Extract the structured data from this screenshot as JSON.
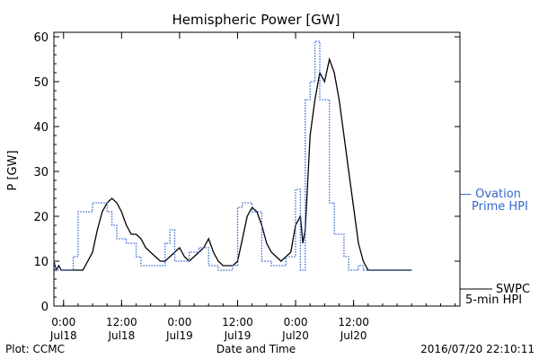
{
  "chart_data": {
    "type": "line",
    "title": "Hemispheric Power [GW]",
    "ylabel": "P [GW]",
    "xlabel": "Date and Time",
    "ylim": [
      0,
      61
    ],
    "xlim": [
      "2016-07-17T22:00",
      "2016-07-21T10:00"
    ],
    "y_ticks": [
      0,
      10,
      20,
      30,
      40,
      50,
      60
    ],
    "x_ticks": [
      {
        "at": "2016-07-18T00:00",
        "line1": "0:00",
        "line2": "Jul18"
      },
      {
        "at": "2016-07-18T12:00",
        "line1": "12:00",
        "line2": "Jul18"
      },
      {
        "at": "2016-07-19T00:00",
        "line1": "0:00",
        "line2": "Jul19"
      },
      {
        "at": "2016-07-19T12:00",
        "line1": "12:00",
        "line2": "Jul19"
      },
      {
        "at": "2016-07-20T00:00",
        "line1": "0:00",
        "line2": "Jul20"
      },
      {
        "at": "2016-07-20T12:00",
        "line1": "12:00",
        "line2": "Jul20"
      }
    ],
    "series": [
      {
        "name": "SWPC 5-min HPI",
        "label_lines": [
          "SWPC",
          "5-min HPI"
        ],
        "color": "#000000",
        "style": "solid",
        "points": [
          [
            "2016-07-17T22:00",
            10
          ],
          [
            "2016-07-17T22:30",
            8
          ],
          [
            "2016-07-17T23:00",
            9
          ],
          [
            "2016-07-17T23:30",
            8
          ],
          [
            "2016-07-18T00:00",
            8
          ],
          [
            "2016-07-18T01:00",
            8
          ],
          [
            "2016-07-18T02:00",
            8
          ],
          [
            "2016-07-18T03:00",
            8
          ],
          [
            "2016-07-18T04:00",
            8
          ],
          [
            "2016-07-18T05:00",
            10
          ],
          [
            "2016-07-18T06:00",
            12
          ],
          [
            "2016-07-18T07:00",
            17
          ],
          [
            "2016-07-18T08:00",
            21
          ],
          [
            "2016-07-18T09:00",
            23
          ],
          [
            "2016-07-18T10:00",
            24
          ],
          [
            "2016-07-18T11:00",
            23
          ],
          [
            "2016-07-18T12:00",
            21
          ],
          [
            "2016-07-18T13:00",
            18
          ],
          [
            "2016-07-18T14:00",
            16
          ],
          [
            "2016-07-18T15:00",
            16
          ],
          [
            "2016-07-18T16:00",
            15
          ],
          [
            "2016-07-18T17:00",
            13
          ],
          [
            "2016-07-18T18:00",
            12
          ],
          [
            "2016-07-18T19:00",
            11
          ],
          [
            "2016-07-18T20:00",
            10
          ],
          [
            "2016-07-18T21:00",
            10
          ],
          [
            "2016-07-18T22:00",
            11
          ],
          [
            "2016-07-18T23:00",
            12
          ],
          [
            "2016-07-19T00:00",
            13
          ],
          [
            "2016-07-19T01:00",
            11
          ],
          [
            "2016-07-19T02:00",
            10
          ],
          [
            "2016-07-19T03:00",
            11
          ],
          [
            "2016-07-19T04:00",
            12
          ],
          [
            "2016-07-19T05:00",
            13
          ],
          [
            "2016-07-19T06:00",
            15
          ],
          [
            "2016-07-19T07:00",
            12
          ],
          [
            "2016-07-19T08:00",
            10
          ],
          [
            "2016-07-19T09:00",
            9
          ],
          [
            "2016-07-19T10:00",
            9
          ],
          [
            "2016-07-19T11:00",
            9
          ],
          [
            "2016-07-19T12:00",
            10
          ],
          [
            "2016-07-19T13:00",
            15
          ],
          [
            "2016-07-19T14:00",
            20
          ],
          [
            "2016-07-19T15:00",
            22
          ],
          [
            "2016-07-19T16:00",
            21
          ],
          [
            "2016-07-19T17:00",
            18
          ],
          [
            "2016-07-19T18:00",
            14
          ],
          [
            "2016-07-19T19:00",
            12
          ],
          [
            "2016-07-19T20:00",
            11
          ],
          [
            "2016-07-19T21:00",
            10
          ],
          [
            "2016-07-19T22:00",
            11
          ],
          [
            "2016-07-19T23:00",
            12
          ],
          [
            "2016-07-20T00:00",
            18
          ],
          [
            "2016-07-20T01:00",
            20
          ],
          [
            "2016-07-20T01:30",
            14
          ],
          [
            "2016-07-20T02:00",
            17
          ],
          [
            "2016-07-20T03:00",
            38
          ],
          [
            "2016-07-20T04:00",
            46
          ],
          [
            "2016-07-20T05:00",
            52
          ],
          [
            "2016-07-20T06:00",
            50
          ],
          [
            "2016-07-20T07:00",
            55
          ],
          [
            "2016-07-20T08:00",
            52
          ],
          [
            "2016-07-20T09:00",
            46
          ],
          [
            "2016-07-20T10:00",
            38
          ],
          [
            "2016-07-20T11:00",
            30
          ],
          [
            "2016-07-20T12:00",
            22
          ],
          [
            "2016-07-20T13:00",
            14
          ],
          [
            "2016-07-20T14:00",
            10
          ],
          [
            "2016-07-20T15:00",
            8
          ],
          [
            "2016-07-20T16:00",
            8
          ],
          [
            "2016-07-20T18:00",
            8
          ],
          [
            "2016-07-20T22:00",
            8
          ],
          [
            "2016-07-21T00:00",
            8
          ]
        ]
      },
      {
        "name": "Ovation Prime HPI",
        "label_lines": [
          "— Ovation",
          "Prime HPI"
        ],
        "color": "#3366cc",
        "style": "dotted",
        "points": [
          [
            "2016-07-17T22:00",
            10
          ],
          [
            "2016-07-17T22:30",
            8
          ],
          [
            "2016-07-18T02:00",
            8
          ],
          [
            "2016-07-18T02:00",
            11
          ],
          [
            "2016-07-18T03:00",
            11
          ],
          [
            "2016-07-18T03:00",
            21
          ],
          [
            "2016-07-18T06:00",
            21
          ],
          [
            "2016-07-18T06:00",
            23
          ],
          [
            "2016-07-18T09:00",
            23
          ],
          [
            "2016-07-18T09:00",
            21
          ],
          [
            "2016-07-18T10:00",
            21
          ],
          [
            "2016-07-18T10:00",
            18
          ],
          [
            "2016-07-18T11:00",
            18
          ],
          [
            "2016-07-18T11:00",
            15
          ],
          [
            "2016-07-18T13:00",
            15
          ],
          [
            "2016-07-18T13:00",
            14
          ],
          [
            "2016-07-18T15:00",
            14
          ],
          [
            "2016-07-18T15:00",
            11
          ],
          [
            "2016-07-18T16:00",
            11
          ],
          [
            "2016-07-18T16:00",
            9
          ],
          [
            "2016-07-18T21:00",
            9
          ],
          [
            "2016-07-18T21:00",
            14
          ],
          [
            "2016-07-18T22:00",
            14
          ],
          [
            "2016-07-18T22:00",
            17
          ],
          [
            "2016-07-18T23:00",
            17
          ],
          [
            "2016-07-18T23:00",
            10
          ],
          [
            "2016-07-19T02:00",
            10
          ],
          [
            "2016-07-19T02:00",
            12
          ],
          [
            "2016-07-19T04:00",
            12
          ],
          [
            "2016-07-19T04:00",
            13
          ],
          [
            "2016-07-19T06:00",
            13
          ],
          [
            "2016-07-19T06:00",
            9
          ],
          [
            "2016-07-19T08:00",
            9
          ],
          [
            "2016-07-19T08:00",
            8
          ],
          [
            "2016-07-19T11:00",
            8
          ],
          [
            "2016-07-19T11:00",
            9
          ],
          [
            "2016-07-19T12:00",
            9
          ],
          [
            "2016-07-19T12:00",
            22
          ],
          [
            "2016-07-19T13:00",
            22
          ],
          [
            "2016-07-19T13:00",
            23
          ],
          [
            "2016-07-19T15:00",
            23
          ],
          [
            "2016-07-19T15:00",
            21
          ],
          [
            "2016-07-19T17:00",
            21
          ],
          [
            "2016-07-19T17:00",
            10
          ],
          [
            "2016-07-19T19:00",
            10
          ],
          [
            "2016-07-19T19:00",
            9
          ],
          [
            "2016-07-19T22:00",
            9
          ],
          [
            "2016-07-19T22:00",
            11
          ],
          [
            "2016-07-20T00:00",
            11
          ],
          [
            "2016-07-20T00:00",
            26
          ],
          [
            "2016-07-20T01:00",
            26
          ],
          [
            "2016-07-20T01:00",
            8
          ],
          [
            "2016-07-20T02:00",
            8
          ],
          [
            "2016-07-20T02:00",
            46
          ],
          [
            "2016-07-20T03:00",
            46
          ],
          [
            "2016-07-20T03:00",
            50
          ],
          [
            "2016-07-20T04:00",
            50
          ],
          [
            "2016-07-20T04:00",
            59
          ],
          [
            "2016-07-20T05:00",
            59
          ],
          [
            "2016-07-20T05:00",
            46
          ],
          [
            "2016-07-20T07:00",
            46
          ],
          [
            "2016-07-20T07:00",
            23
          ],
          [
            "2016-07-20T08:00",
            23
          ],
          [
            "2016-07-20T08:00",
            16
          ],
          [
            "2016-07-20T10:00",
            16
          ],
          [
            "2016-07-20T10:00",
            11
          ],
          [
            "2016-07-20T11:00",
            11
          ],
          [
            "2016-07-20T11:00",
            8
          ],
          [
            "2016-07-20T13:00",
            8
          ],
          [
            "2016-07-20T13:00",
            9
          ],
          [
            "2016-07-20T14:00",
            9
          ],
          [
            "2016-07-20T14:00",
            8
          ],
          [
            "2016-07-21T00:00",
            8
          ]
        ]
      }
    ]
  },
  "footer": {
    "plot_label": "Plot: CCMC",
    "xlabel": "Date and Time",
    "timestamp": "2016/07/20 22:10:11"
  }
}
